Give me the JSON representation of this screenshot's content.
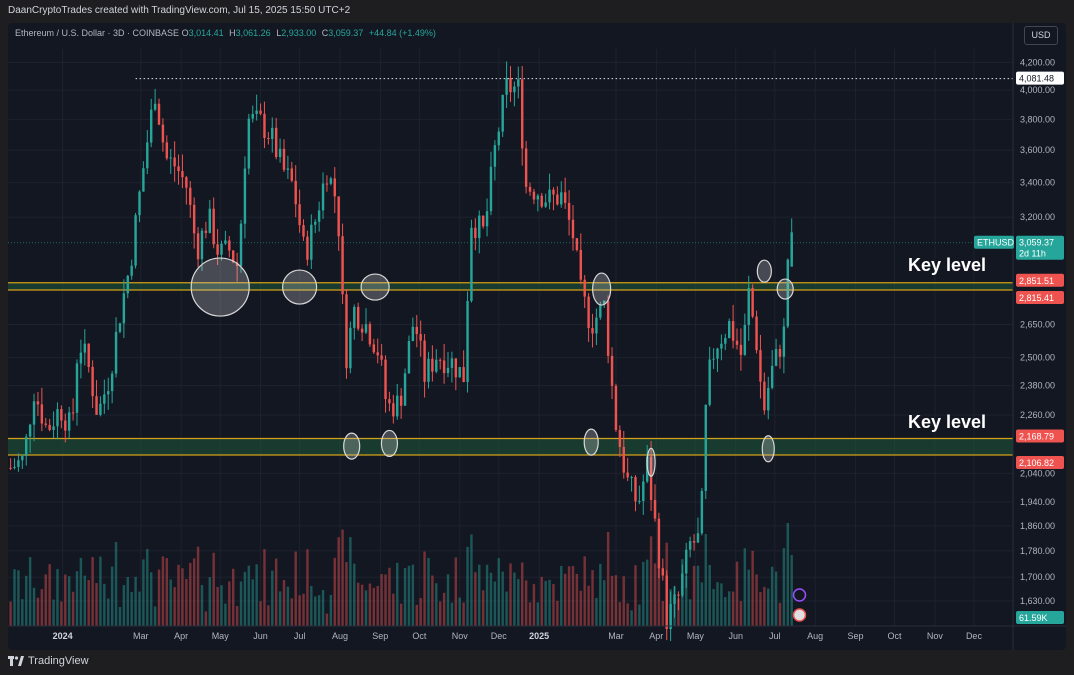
{
  "credit": "DaanCryptoTrades created with TradingView.com, Jul 15, 2025 15:50 UTC+2",
  "brand": "TradingView",
  "colors": {
    "background": "#131722",
    "up": "#26a69a",
    "down": "#ef5350",
    "zone_line": "#d4a017",
    "zone_fill": "#1f5a3a",
    "grid": "#1e222d"
  },
  "legend": {
    "symbol": "Ethereum / U.S. Dollar · 3D · COINBASE",
    "o_label": "O",
    "o_value": "3,014.41",
    "h_label": "H",
    "h_value": "3,061.26",
    "l_label": "L",
    "l_value": "2,933.00",
    "c_label": "C",
    "c_value": "3,059.37",
    "change": "+44.84 (+1.49%)"
  },
  "currency": "USD",
  "chart_data": {
    "type": "candlestick",
    "y_scale": "log",
    "ylim": [
      1560,
      4300
    ],
    "y_ticks": [
      "4,200.00",
      "4,000.00",
      "3,800.00",
      "3,600.00",
      "3,400.00",
      "3,200.00",
      "2,650.00",
      "2,500.00",
      "2,380.00",
      "2,260.00",
      "2,040.00",
      "1,940.00",
      "1,860.00",
      "1,780.00",
      "1,700.00",
      "1,630.00"
    ],
    "x_ticks": [
      "2024",
      "Mar",
      "Apr",
      "May",
      "Jun",
      "Jul",
      "Aug",
      "Sep",
      "Oct",
      "Nov",
      "Dec",
      "2025",
      "Mar",
      "Apr",
      "May",
      "Jun",
      "Jul",
      "Aug",
      "Sep",
      "Oct",
      "Nov",
      "Dec"
    ],
    "x_range": [
      "2023-11-20",
      "2025-12-31"
    ],
    "price_labels": {
      "high_line": "4,081.48",
      "current_symbol": "ETHUSD",
      "current_price": "3,059.37",
      "countdown": "2d 11h",
      "zone1_top": "2,851.51",
      "zone1_bottom": "2,815.41",
      "zone2_top": "2,168.79",
      "zone2_bottom": "2,106.82",
      "volume": "61.59K"
    },
    "annotations": [
      "Key level",
      "Key level"
    ],
    "zones": [
      {
        "top": 2851.51,
        "bottom": 2815.41
      },
      {
        "top": 2168.79,
        "bottom": 2106.82
      }
    ],
    "high_line_value": 4081.48,
    "current_value": 3059.37,
    "close_path": [
      [
        "2023-11-22",
        2060
      ],
      [
        "2023-12-02",
        2090
      ],
      [
        "2023-12-10",
        2360
      ],
      [
        "2023-12-20",
        2200
      ],
      [
        "2023-12-30",
        2290
      ],
      [
        "2024-01-08",
        2200
      ],
      [
        "2024-01-13",
        2580
      ],
      [
        "2024-01-20",
        2480
      ],
      [
        "2024-01-28",
        2260
      ],
      [
        "2024-02-06",
        2420
      ],
      [
        "2024-02-14",
        2700
      ],
      [
        "2024-02-22",
        2950
      ],
      [
        "2024-03-01",
        3380
      ],
      [
        "2024-03-12",
        3990
      ],
      [
        "2024-03-20",
        3550
      ],
      [
        "2024-03-28",
        3500
      ],
      [
        "2024-04-05",
        3380
      ],
      [
        "2024-04-13",
        3020
      ],
      [
        "2024-04-22",
        3200
      ],
      [
        "2024-04-30",
        3000
      ],
      [
        "2024-05-08",
        3020
      ],
      [
        "2024-05-15",
        2930
      ],
      [
        "2024-05-22",
        3800
      ],
      [
        "2024-06-01",
        3780
      ],
      [
        "2024-06-09",
        3690
      ],
      [
        "2024-06-18",
        3480
      ],
      [
        "2024-06-26",
        3380
      ],
      [
        "2024-07-05",
        2990
      ],
      [
        "2024-07-13",
        3180
      ],
      [
        "2024-07-22",
        3480
      ],
      [
        "2024-07-30",
        3280
      ],
      [
        "2024-08-05",
        2480
      ],
      [
        "2024-08-12",
        2720
      ],
      [
        "2024-08-22",
        2640
      ],
      [
        "2024-08-31",
        2520
      ],
      [
        "2024-09-06",
        2290
      ],
      [
        "2024-09-16",
        2310
      ],
      [
        "2024-09-27",
        2680
      ],
      [
        "2024-10-05",
        2420
      ],
      [
        "2024-10-14",
        2510
      ],
      [
        "2024-10-26",
        2480
      ],
      [
        "2024-11-04",
        2420
      ],
      [
        "2024-11-10",
        3180
      ],
      [
        "2024-11-20",
        3110
      ],
      [
        "2024-11-28",
        3600
      ],
      [
        "2024-12-07",
        4020
      ],
      [
        "2024-12-16",
        4010
      ],
      [
        "2024-12-22",
        3380
      ],
      [
        "2024-12-31",
        3350
      ],
      [
        "2025-01-08",
        3300
      ],
      [
        "2025-01-18",
        3320
      ],
      [
        "2025-01-27",
        3100
      ],
      [
        "2025-02-02",
        2800
      ],
      [
        "2025-02-10",
        2650
      ],
      [
        "2025-02-20",
        2740
      ],
      [
        "2025-02-28",
        2250
      ],
      [
        "2025-03-09",
        2020
      ],
      [
        "2025-03-18",
        1930
      ],
      [
        "2025-03-25",
        2070
      ],
      [
        "2025-04-02",
        1800
      ],
      [
        "2025-04-09",
        1580
      ],
      [
        "2025-04-18",
        1640
      ],
      [
        "2025-04-27",
        1800
      ],
      [
        "2025-05-05",
        1820
      ],
      [
        "2025-05-10",
        2380
      ],
      [
        "2025-05-16",
        2550
      ],
      [
        "2025-05-27",
        2650
      ],
      [
        "2025-06-06",
        2500
      ],
      [
        "2025-06-11",
        2800
      ],
      [
        "2025-06-18",
        2530
      ],
      [
        "2025-06-22",
        2260
      ],
      [
        "2025-06-28",
        2430
      ],
      [
        "2025-07-04",
        2530
      ],
      [
        "2025-07-08",
        2610
      ],
      [
        "2025-07-11",
        2980
      ],
      [
        "2025-07-14",
        3059
      ]
    ]
  }
}
